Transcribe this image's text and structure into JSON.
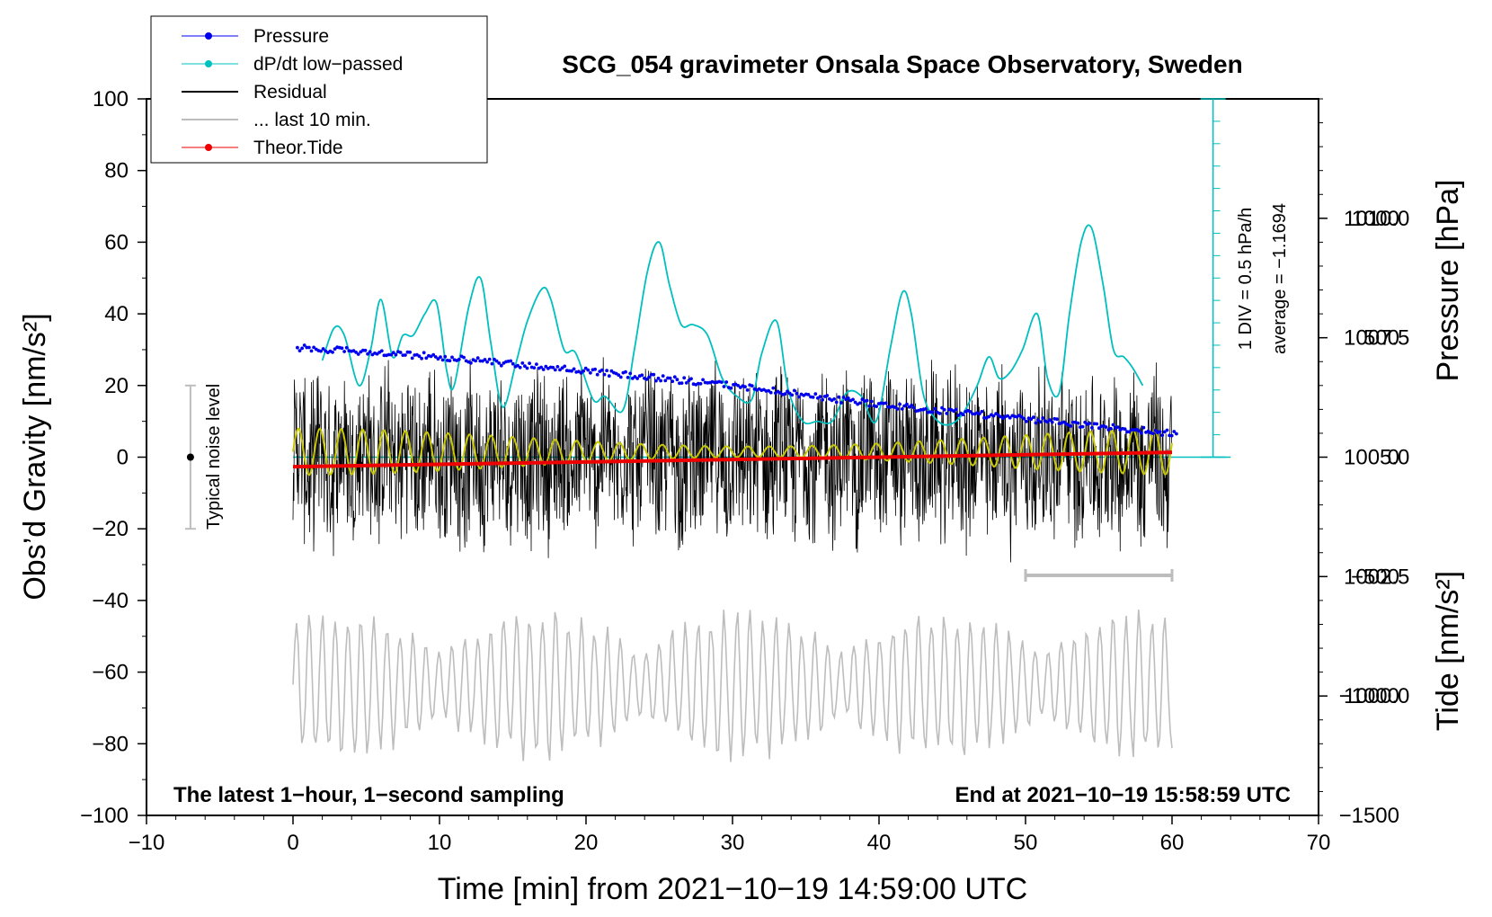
{
  "chart_data": {
    "type": "line",
    "title": "SCG_054 gravimeter Onsala Space Observatory, Sweden",
    "xlabel": "Time [min] from 2021−10−19 14:59:00 UTC",
    "ylabel_left": "Obs’d Gravity [nm/s²]",
    "ylabel_right_top": "Pressure [hPa]",
    "ylabel_right_bottom": "Tide [nm/s²]",
    "xlim": [
      -10,
      70
    ],
    "ylim": [
      -100,
      100
    ],
    "pressure_lim": [
      997.5,
      1012.5
    ],
    "tide_lim": [
      -1500,
      1500
    ],
    "x_ticks": [
      "−10",
      "0",
      "10",
      "20",
      "30",
      "40",
      "50",
      "60",
      "70"
    ],
    "y_ticks": [
      "−100",
      "−80",
      "−60",
      "−40",
      "−20",
      "0",
      "20",
      "40",
      "60",
      "80",
      "100"
    ],
    "pressure_ticks": [
      "1000.0",
      "1002.5",
      "1005.0",
      "1007.5",
      "1010.0"
    ],
    "tide_ticks": [
      "−1500",
      "−1000",
      "−500",
      "0",
      "500",
      "1000"
    ],
    "legend": [
      {
        "label": "Pressure",
        "color": "#0000ee",
        "marker": "dot"
      },
      {
        "label": "dP/dt low−passed",
        "color": "#00c0c0",
        "marker": "dot"
      },
      {
        "label": "Residual",
        "color": "#000000",
        "marker": "line"
      },
      {
        "label": "... last 10 min.",
        "color": "#bdbdbd",
        "marker": "line"
      },
      {
        "label": "Theor.Tide",
        "color": "#ee0000",
        "marker": "dot"
      }
    ],
    "annotations": {
      "left_note": "The latest 1−hour, 1−second sampling",
      "right_note": "End at 2021−10−19 15:58:59 UTC",
      "noise_label": "Typical noise level",
      "div_label": "1 DIV = 0.5 hPa/h",
      "average_label": "average = −1.1694"
    },
    "noise_bar": {
      "x": -7,
      "y_range": [
        -20,
        20
      ]
    },
    "last10_span": [
      50,
      60
    ],
    "series": [
      {
        "name": "Pressure",
        "axis": "pressure",
        "color": "#0000ee",
        "x": [
          0,
          10,
          20,
          30,
          40,
          50,
          60
        ],
        "values": [
          1007.3,
          1007.1,
          1006.8,
          1006.5,
          1006.1,
          1005.8,
          1005.5
        ]
      },
      {
        "name": "dP/dt low-passed",
        "axis": "left",
        "color": "#00bfbf",
        "x": [
          2,
          2.8,
          3.5,
          4.5,
          5.3,
          6,
          6.8,
          7.5,
          8.2,
          9,
          9.8,
          10.5,
          11,
          12,
          12.8,
          13.5,
          14.3,
          15.2,
          16,
          17,
          17.6,
          18.5,
          19.3,
          20.5,
          21.3,
          22.5,
          23.3,
          24.2,
          25,
          25.7,
          26.5,
          27.3,
          28.3,
          29.3,
          30.3,
          31.3,
          32,
          33,
          33.8,
          34.8,
          35.8,
          36.8,
          37.8,
          38.8,
          39.8,
          40.8,
          41.6,
          42.2,
          43,
          43.8,
          44.7,
          45.7,
          46.7,
          47.5,
          48.2,
          49,
          49.8,
          50.8,
          51.5,
          52.3,
          53,
          53.8,
          54.5,
          55.3,
          56,
          56.7,
          57.3,
          58
        ],
        "values": [
          27,
          36,
          34,
          20,
          30,
          44,
          28,
          34,
          34,
          40,
          43,
          24,
          20,
          42,
          50,
          32,
          14,
          26,
          38,
          47,
          44,
          30,
          29,
          16,
          17,
          13,
          30,
          52,
          60,
          48,
          37,
          37,
          34,
          22,
          17,
          16,
          29,
          38,
          19,
          10,
          10,
          10,
          18,
          17,
          10,
          31,
          46,
          40,
          18,
          11,
          9,
          12,
          20,
          28,
          22,
          24,
          30,
          40,
          22,
          18,
          40,
          60,
          64,
          48,
          30,
          28,
          25,
          20
        ]
      },
      {
        "name": "Residual",
        "axis": "left",
        "color": "#000000",
        "x_range": [
          0,
          60
        ],
        "envelope": [
          -26,
          26
        ]
      },
      {
        "name": "Residual (smoothed)",
        "axis": "left",
        "color": "#c8c800",
        "x_range": [
          0,
          60
        ],
        "envelope": [
          -5,
          8
        ]
      },
      {
        "name": "... last 10 min.",
        "axis": "left",
        "color": "#bdbdbd",
        "x_range": [
          0,
          60
        ],
        "envelope": [
          -82,
          -37
        ]
      },
      {
        "name": "Theor.Tide",
        "axis": "tide",
        "color": "#ee0000",
        "x": [
          0,
          60
        ],
        "values": [
          -40,
          20
        ]
      }
    ]
  }
}
